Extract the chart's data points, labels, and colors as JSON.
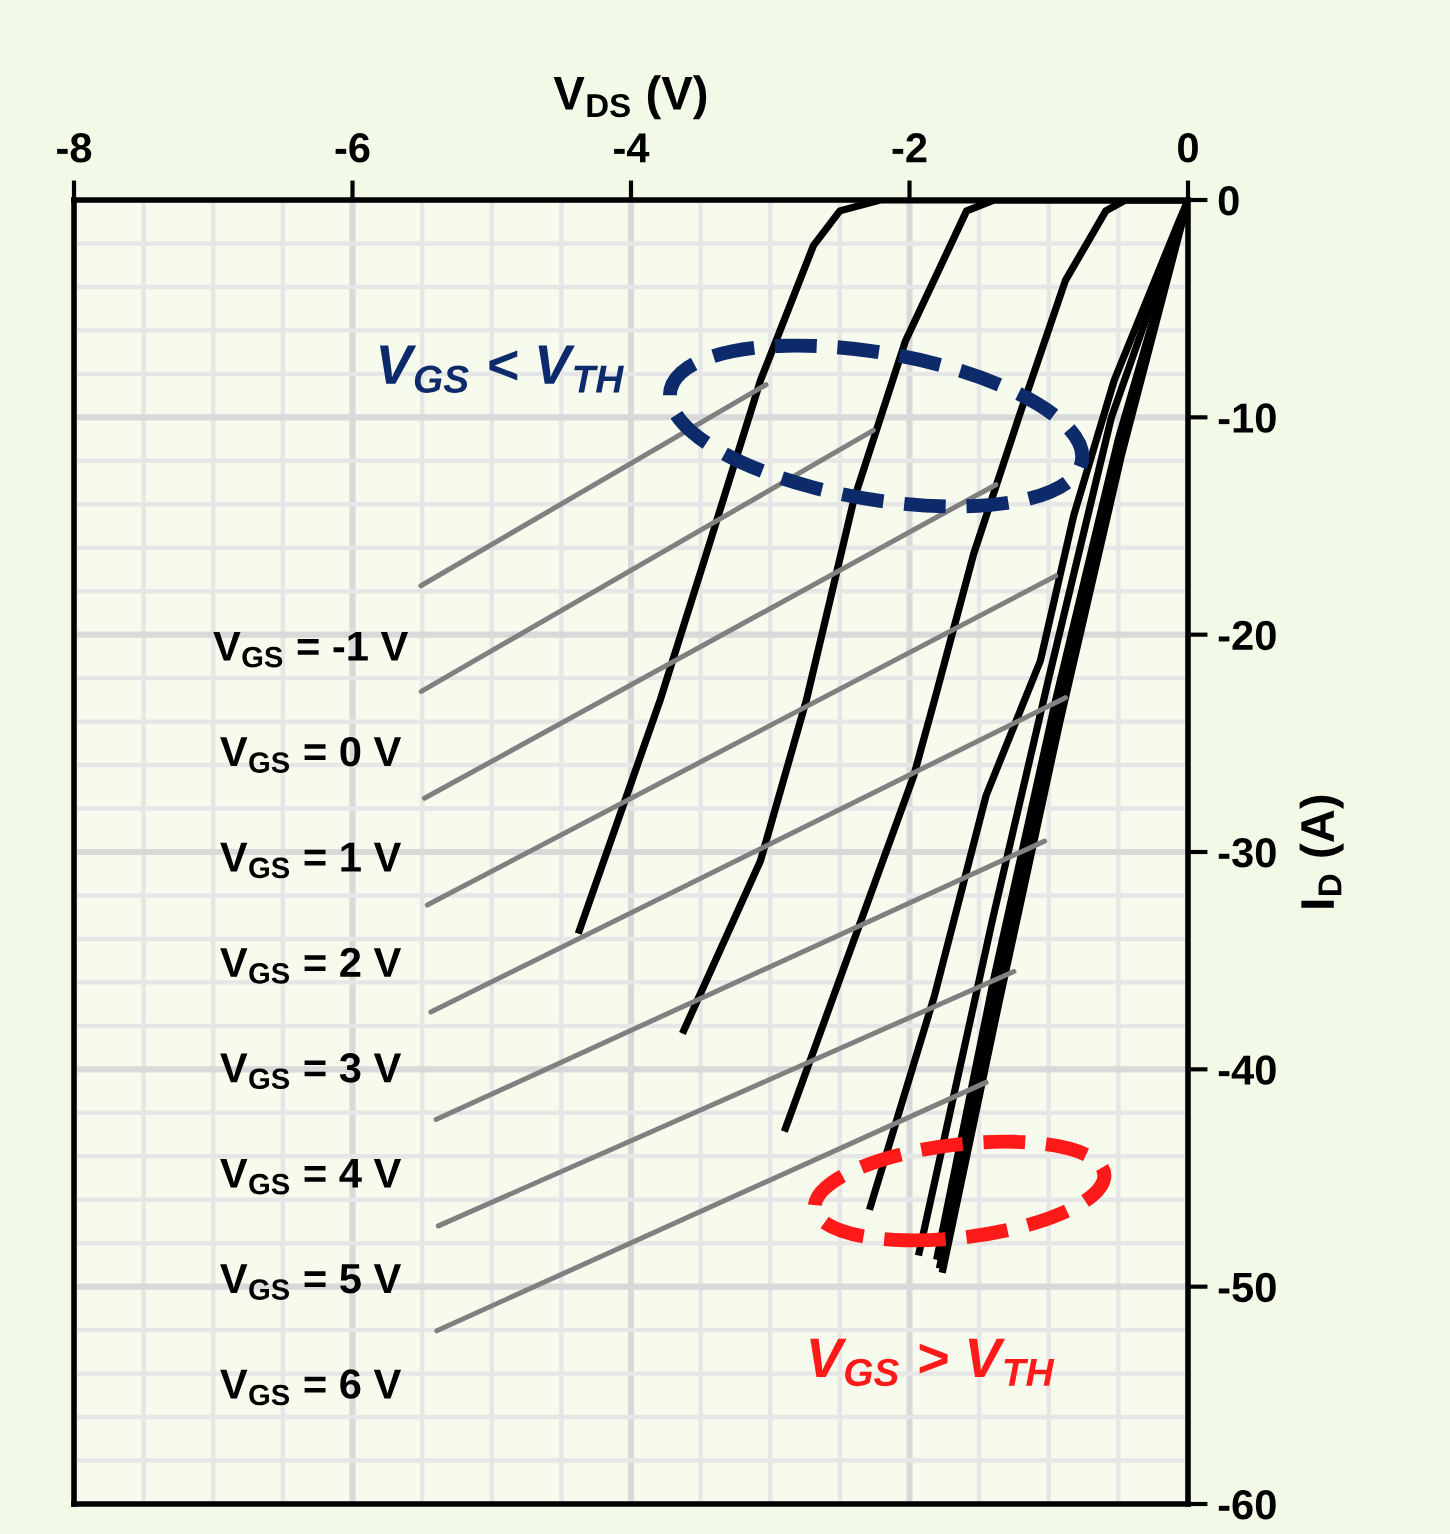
{
  "chart_data": {
    "type": "line",
    "xlabel": "V$_{DS}$ (V)",
    "ylabel": "I$_{D}$ (A)",
    "xlim": [
      -8,
      0
    ],
    "xticks": [
      -8,
      -6,
      -4,
      -2,
      0
    ],
    "ylim": [
      -60,
      0
    ],
    "yticks": [
      0,
      -10,
      -20,
      -30,
      -40,
      -50,
      -60
    ],
    "grid": true,
    "marker": "none",
    "line_style": "solid",
    "series": [
      {
        "color": "#000000",
        "x": [
          0,
          -2.21,
          -2.5,
          -2.69,
          -3.07,
          -3.46,
          -3.79,
          -4.37
        ],
        "values": [
          0,
          0,
          -0.5,
          -2.1,
          -8.3,
          -16.3,
          -23.0,
          -33.6
        ]
      },
      {
        "color": "#000000",
        "x": [
          0,
          -1.39,
          -1.59,
          -2.03,
          -2.4,
          -2.74,
          -3.07,
          -3.62
        ],
        "values": [
          0,
          0,
          -0.5,
          -6.5,
          -13.8,
          -23.0,
          -30.4,
          -38.2
        ]
      },
      {
        "color": "#000000",
        "x": [
          0,
          -0.45,
          -0.59,
          -0.88,
          -1.21,
          -1.54,
          -1.82,
          -1.97,
          -2.89
        ],
        "values": [
          0,
          0,
          -0.5,
          -3.7,
          -9.9,
          -16.3,
          -23.0,
          -26.5,
          -42.7
        ]
      },
      {
        "color": "#000000",
        "x": [
          0,
          -0.06,
          -0.53,
          -0.82,
          -1.06,
          -1.45,
          -1.82,
          -2.28
        ],
        "values": [
          0,
          -0.9,
          -8.3,
          -14.5,
          -21.2,
          -27.4,
          -36.6,
          -46.3
        ]
      },
      {
        "color": "#000000",
        "x": [
          0,
          -0.55,
          -1.0,
          -1.4,
          -1.93
        ],
        "values": [
          0,
          -10,
          -22,
          -33,
          -48.4
        ]
      },
      {
        "color": "#000000",
        "x": [
          0,
          -0.5,
          -0.95,
          -1.4,
          -1.8
        ],
        "values": [
          0,
          -11,
          -23,
          -36,
          -48.6
        ]
      },
      {
        "color": "#000000",
        "x": [
          0,
          -0.5,
          -0.93,
          -1.38,
          -1.78
        ],
        "values": [
          0,
          -11.5,
          -23.5,
          -36.5,
          -49.0
        ]
      },
      {
        "color": "#000000",
        "x": [
          0,
          -0.48,
          -0.92,
          -1.36,
          -1.76
        ],
        "values": [
          0,
          -11.8,
          -24,
          -37,
          -49.2
        ]
      }
    ],
    "annotations": [
      {
        "text": "V$_{GS}$ = -1 V",
        "x": -3.03,
        "y": -8.5
      },
      {
        "text": "V$_{GS}$ = 0 V",
        "x": -2.26,
        "y": -10.6
      },
      {
        "text": "V$_{GS}$ = 1 V",
        "x": -1.38,
        "y": -13.1
      },
      {
        "text": "V$_{GS}$ = 2 V",
        "x": -0.95,
        "y": -17.3
      },
      {
        "text": "V$_{GS}$ = 3 V",
        "x": -0.88,
        "y": -22.9
      },
      {
        "text": "V$_{GS}$ = 4 V",
        "x": -1.03,
        "y": -29.5
      },
      {
        "text": "V$_{GS}$ = 5 V",
        "x": -1.25,
        "y": -35.5
      },
      {
        "text": "V$_{GS}$ = 6 V",
        "x": -1.45,
        "y": -40.6
      },
      "V$_{GS}$ < V$_{TH}$",
      "V$_{GS}$ > V$_{TH}$"
    ]
  }
}
